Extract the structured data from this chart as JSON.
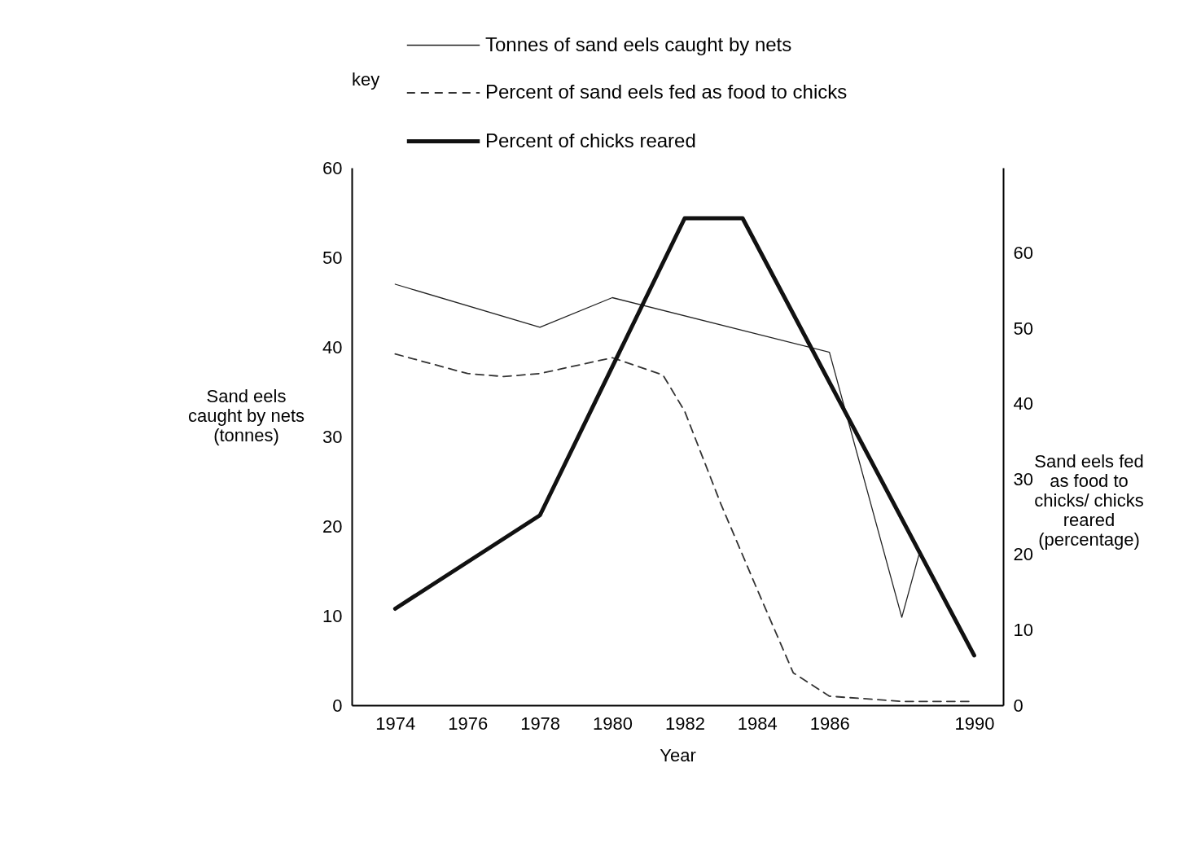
{
  "chart_data": {
    "type": "line",
    "xlabel": "Year",
    "ylabel": "Sand eels\ncaught by nets\n(tonnes)",
    "y2label": "Sand eels fed\nas food to\nchicks/ chicks\nreared\n(percentage)",
    "legend_title": "key",
    "legend": "top",
    "grid": false,
    "marker": "none",
    "xlim": [
      1972.8,
      1990.8
    ],
    "xticks": [
      1974,
      1976,
      1978,
      1980,
      1982,
      1984,
      1986,
      1990
    ],
    "ylim": [
      0,
      60
    ],
    "yticks": [
      0,
      10,
      20,
      30,
      40,
      50,
      60
    ],
    "y2lim": [
      0,
      71.3
    ],
    "y2ticks": [
      0,
      10,
      20,
      30,
      40,
      50,
      60
    ],
    "series": [
      {
        "name": "Tonnes of sand eels caught by nets",
        "color": "#222222",
        "line_style": "solid",
        "x": [
          1974,
          1978,
          1980,
          1986,
          1988,
          1988.5
        ],
        "values": [
          47,
          42.2,
          45.5,
          39.4,
          9.8,
          17.2
        ]
      },
      {
        "name": "Percent of sand eels fed as food to chicks",
        "color": "#333333",
        "line_style": "dashed",
        "axis": "y2",
        "x": [
          1974,
          1976,
          1977,
          1978,
          1980,
          1981.4,
          1982,
          1983,
          1984,
          1985,
          1986,
          1988,
          1990
        ],
        "values": [
          46.6,
          44,
          43.6,
          44,
          46.1,
          43.8,
          39,
          26.7,
          15.4,
          4.3,
          1.2,
          0.5,
          0.5
        ]
      },
      {
        "name": "Percent of chicks reared",
        "color": "#111111",
        "line_style": "solid",
        "axis": "y2",
        "x": [
          1974,
          1978,
          1982,
          1983.6,
          1990
        ],
        "values": [
          12.8,
          25.2,
          64.6,
          64.6,
          6.6
        ]
      }
    ]
  }
}
